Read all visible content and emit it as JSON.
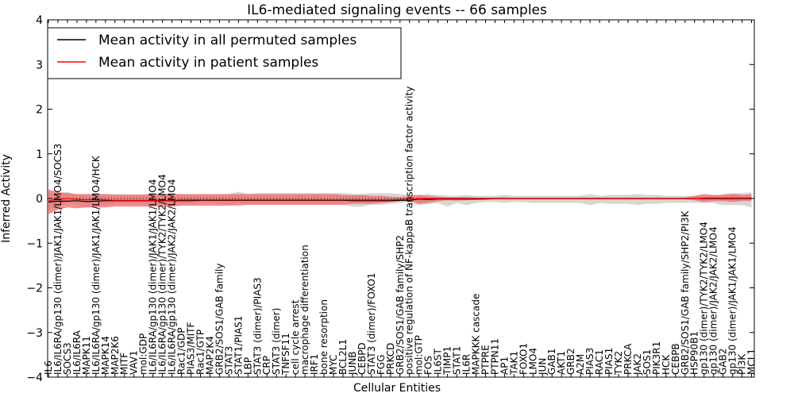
{
  "chart_data": {
    "type": "line",
    "title": "IL6-mediated signaling events -- 66 samples",
    "xlabel": "Cellular Entities",
    "ylabel": "Inferred Activity",
    "ylim": [
      -4,
      4
    ],
    "yticks": [
      "4",
      "3",
      "2",
      "1",
      "0",
      "−1",
      "−2",
      "−3",
      "−4"
    ],
    "ytick_values": [
      4,
      3,
      2,
      1,
      0,
      -1,
      -2,
      -3,
      -4
    ],
    "legend": {
      "placement": "top-left",
      "entries": [
        {
          "label": "Mean activity in all permuted samples",
          "color": "#000000"
        },
        {
          "label": "Mean activity in patient samples",
          "color": "#ff0000"
        }
      ]
    },
    "categories": [
      "IL6",
      "IL6/IL6RA/gp130 (dimer)/JAK1/JAK1/LMO4/SOCS3",
      "SOCS3",
      "IL6/IL6RA",
      "MAPK11",
      "IL6/IL6RA/gp130 (dimer)/JAK1/JAK1/LMO4/HCK",
      "MAPK14",
      "MAP2K6",
      "MITF",
      "VAV1",
      "mol:GDP",
      "IL6/IL6RA/gp130 (dimer)/JAK1/JAK1/LMO4",
      "IL6/IL6RA/gp130 (dimer)/TYK2/TYK2/LMO4",
      "IL6/IL6RA/gp130 (dimer)/JAK2/JAK2/LMO4",
      "Rac1/GDP",
      "PIAS3/MITF",
      "Rac1/GTP",
      "MAP2K4",
      "GRB2/SOS1/GAB family",
      "STAT3",
      "STAT1/PIAS1",
      "LBP",
      "STAT3 (dimer)/PIAS3",
      "CRP",
      "STAT3 (dimer)",
      "TNFSF11",
      "cell cycle arrest",
      "macrophage differentiation",
      "IRF1",
      "bone resorption",
      "MYC",
      "BCL2L1",
      "JUNB",
      "CEBPD",
      "STAT3 (dimer)/FOXO1",
      "FGG",
      "PRKCD",
      "GRB2/SOS1/GAB family/SHP2",
      "positive regulation of NF-kappaB transcription factor activity",
      "mol:GTP",
      "FOS",
      "IL6ST",
      "TIMP1",
      "STAT1",
      "IL6R",
      "MAPKKK cascade",
      "PTPRE",
      "PTPN11",
      "AP1",
      "TAK1",
      "FOXO1",
      "LMO4",
      "JUN",
      "GAB1",
      "AKT1",
      "GRB2",
      "A2M",
      "PIAS3",
      "RAC1",
      "PIAS1",
      "TYK2",
      "PRKCA",
      "JAK2",
      "SOS1",
      "PIK3R1",
      "HCK",
      "CEBPB",
      "GRB2/SOS1/GAB family/SHP2/PI3K",
      "HSP90B1",
      "gp130 (dimer)/TYK2/TYK2/LMO4",
      "gp130 (dimer)/JAK2/JAK2/LMO4",
      "GAB2",
      "gp130 (dimer)/JAK1/JAK1/LMO4",
      "PI3K",
      "MCL1"
    ],
    "series": [
      {
        "name": "Mean activity in all permuted samples",
        "color": "#000000",
        "values": [
          -0.08,
          -0.06,
          -0.06,
          -0.05,
          -0.07,
          -0.06,
          -0.05,
          -0.05,
          -0.05,
          -0.05,
          -0.05,
          -0.05,
          -0.05,
          -0.05,
          -0.05,
          -0.05,
          -0.04,
          -0.04,
          -0.04,
          -0.04,
          -0.04,
          -0.04,
          -0.04,
          -0.04,
          -0.04,
          -0.04,
          -0.04,
          -0.04,
          -0.04,
          -0.04,
          -0.04,
          -0.04,
          -0.05,
          -0.05,
          -0.05,
          -0.05,
          -0.05,
          -0.04,
          -0.04,
          -0.01,
          -0.02,
          -0.01,
          -0.01,
          -0.01,
          -0.01,
          -0.01,
          -0.01,
          0.0,
          0.0,
          0.0,
          0.0,
          0.0,
          0.0,
          0.0,
          0.0,
          0.0,
          0.0,
          0.0,
          0.0,
          0.0,
          0.0,
          0.0,
          0.0,
          0.0,
          0.0,
          0.0,
          0.0,
          0.0,
          0.0,
          0.0,
          0.0,
          0.0,
          0.0,
          0.0,
          0.0
        ]
      },
      {
        "name": "Mean activity in patient samples",
        "color": "#ff0000",
        "values": [
          -0.05,
          -0.02,
          0.0,
          -0.02,
          -0.03,
          -0.02,
          -0.03,
          -0.04,
          -0.04,
          -0.04,
          -0.04,
          -0.04,
          -0.04,
          -0.04,
          -0.03,
          -0.03,
          -0.03,
          -0.03,
          -0.03,
          -0.03,
          -0.03,
          -0.03,
          -0.03,
          -0.03,
          -0.03,
          -0.03,
          -0.03,
          -0.03,
          -0.03,
          -0.03,
          -0.03,
          -0.03,
          -0.03,
          -0.03,
          -0.03,
          -0.03,
          -0.03,
          -0.02,
          -0.02,
          0.0,
          0.0,
          0.0,
          0.0,
          0.0,
          0.0,
          0.0,
          0.0,
          0.0,
          0.0,
          0.0,
          0.0,
          0.0,
          0.0,
          0.0,
          0.0,
          0.0,
          0.0,
          0.0,
          0.0,
          0.0,
          0.0,
          0.0,
          0.0,
          0.0,
          0.0,
          0.0,
          0.0,
          0.0,
          0.0,
          0.01,
          0.01,
          0.01,
          0.01,
          0.01,
          0.01
        ]
      }
    ],
    "bands": [
      {
        "name": "permuted spread",
        "color": "#bbbbbb",
        "lower": [
          -0.25,
          -0.18,
          -0.1,
          -0.15,
          -0.2,
          -0.16,
          -0.16,
          -0.12,
          -0.12,
          -0.12,
          -0.12,
          -0.14,
          -0.14,
          -0.14,
          -0.12,
          -0.12,
          -0.1,
          -0.1,
          -0.12,
          -0.14,
          -0.18,
          -0.14,
          -0.14,
          -0.14,
          -0.14,
          -0.14,
          -0.14,
          -0.14,
          -0.14,
          -0.14,
          -0.14,
          -0.14,
          -0.18,
          -0.18,
          -0.14,
          -0.14,
          -0.12,
          -0.1,
          -0.08,
          -0.15,
          -0.12,
          -0.1,
          -0.18,
          -0.1,
          -0.15,
          -0.1,
          -0.08,
          -0.08,
          -0.1,
          -0.08,
          -0.08,
          -0.1,
          -0.1,
          -0.1,
          -0.1,
          -0.1,
          -0.1,
          -0.15,
          -0.1,
          -0.12,
          -0.12,
          -0.12,
          -0.15,
          -0.12,
          -0.12,
          -0.1,
          -0.1,
          -0.1,
          -0.1,
          -0.1,
          -0.1,
          -0.15,
          -0.15,
          -0.15,
          -0.2
        ],
        "upper": [
          0.15,
          0.1,
          0.15,
          0.08,
          0.08,
          0.08,
          0.1,
          0.08,
          0.08,
          0.08,
          0.08,
          0.1,
          0.1,
          0.1,
          0.1,
          0.08,
          0.08,
          0.08,
          0.08,
          0.1,
          0.15,
          0.1,
          0.12,
          0.12,
          0.12,
          0.12,
          0.12,
          0.12,
          0.12,
          0.12,
          0.12,
          0.12,
          0.1,
          0.1,
          0.12,
          0.12,
          0.12,
          0.1,
          0.08,
          0.08,
          0.1,
          0.08,
          0.06,
          0.06,
          0.08,
          0.06,
          0.06,
          0.06,
          0.08,
          0.06,
          0.06,
          0.06,
          0.06,
          0.06,
          0.06,
          0.06,
          0.06,
          0.1,
          0.06,
          0.08,
          0.08,
          0.08,
          0.1,
          0.08,
          0.08,
          0.06,
          0.06,
          0.06,
          0.06,
          0.06,
          0.06,
          0.1,
          0.12,
          0.12,
          0.14
        ]
      },
      {
        "name": "patient spread",
        "color": "#ef6a6a",
        "lower": [
          -0.35,
          -0.25,
          -0.2,
          -0.22,
          -0.2,
          -0.2,
          -0.2,
          -0.18,
          -0.18,
          -0.18,
          -0.18,
          -0.18,
          -0.18,
          -0.18,
          -0.16,
          -0.16,
          -0.16,
          -0.16,
          -0.16,
          -0.16,
          -0.14,
          -0.14,
          -0.14,
          -0.14,
          -0.14,
          -0.14,
          -0.14,
          -0.14,
          -0.14,
          -0.14,
          -0.14,
          -0.14,
          -0.12,
          -0.12,
          -0.12,
          -0.1,
          -0.08,
          -0.06,
          -0.05,
          -0.12,
          -0.1,
          -0.06,
          -0.04,
          -0.05,
          -0.04,
          -0.03,
          -0.02,
          -0.02,
          -0.02,
          -0.02,
          -0.02,
          -0.02,
          -0.02,
          -0.02,
          -0.02,
          -0.02,
          -0.02,
          -0.02,
          -0.02,
          -0.02,
          -0.02,
          -0.02,
          -0.02,
          -0.02,
          -0.02,
          -0.02,
          -0.02,
          -0.02,
          -0.04,
          -0.08,
          -0.06,
          -0.06,
          -0.08,
          -0.06,
          -0.06
        ],
        "upper": [
          0.2,
          0.15,
          0.12,
          0.1,
          0.1,
          0.1,
          0.1,
          0.09,
          0.09,
          0.09,
          0.09,
          0.1,
          0.1,
          0.1,
          0.1,
          0.1,
          0.1,
          0.1,
          0.1,
          0.1,
          0.1,
          0.1,
          0.1,
          0.1,
          0.1,
          0.1,
          0.1,
          0.1,
          0.1,
          0.1,
          0.1,
          0.08,
          0.08,
          0.08,
          0.06,
          0.06,
          0.04,
          0.03,
          0.06,
          0.08,
          0.06,
          0.04,
          0.03,
          0.03,
          0.03,
          0.02,
          0.02,
          0.02,
          0.02,
          0.02,
          0.02,
          0.02,
          0.02,
          0.02,
          0.02,
          0.02,
          0.02,
          0.02,
          0.02,
          0.02,
          0.02,
          0.02,
          0.02,
          0.02,
          0.02,
          0.02,
          0.02,
          0.02,
          0.06,
          0.1,
          0.08,
          0.08,
          0.1,
          0.08,
          0.1
        ]
      }
    ]
  }
}
